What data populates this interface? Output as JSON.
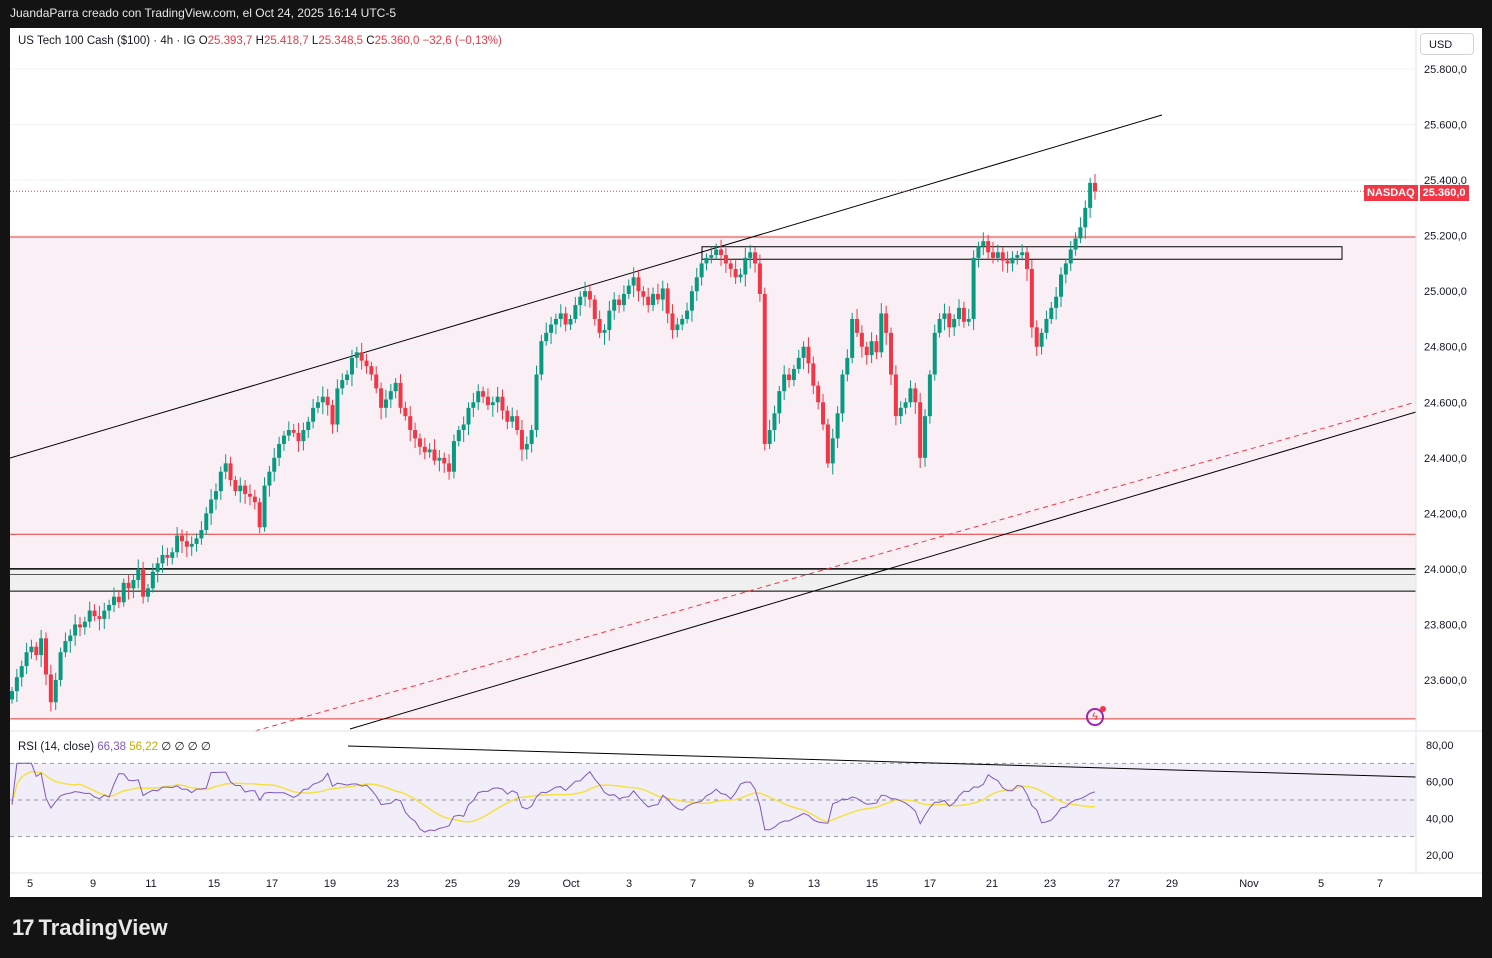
{
  "header": {
    "attribution": "JuandaParra creado con TradingView.com, el Oct 24, 2025 16:14 UTC-5"
  },
  "legend": {
    "symbol": "US Tech 100 Cash ($100) · 4h · IG",
    "open_label": "O",
    "open": "25.393,7",
    "high_label": "H",
    "high": "25.418,7",
    "low_label": "L",
    "low": "25.348,5",
    "close_label": "C",
    "close": "25.360,0",
    "change": "−32,6 (−0,13%)"
  },
  "currency_button": "USD",
  "price_tag": {
    "name": "NASDAQ",
    "value": "25.360,0"
  },
  "rsi_legend": {
    "label": "RSI (14, close)",
    "rsi": "66,38",
    "ma": "56,22",
    "extra": "∅ ∅ ∅ ∅"
  },
  "footer": {
    "logo": "TradingView"
  },
  "colors": {
    "bull": "#089981",
    "bear": "#f23645",
    "rsi": "#7e57c2",
    "rsi_ma": "#f5e142",
    "zone_fill": "#fbeff6"
  },
  "chart_data": [
    {
      "type": "candlestick",
      "title": "US Tech 100 Cash ($100) · 4h · IG",
      "y_axis": {
        "ticks": [
          "25.800,0",
          "25.600,0",
          "25.400,0",
          "25.200,0",
          "25.000,0",
          "24.800,0",
          "24.600,0",
          "24.400,0",
          "24.200,0",
          "24.000,0",
          "23.800,0",
          "23.600,0"
        ],
        "values": [
          25800,
          25600,
          25400,
          25200,
          25000,
          24800,
          24600,
          24400,
          24200,
          24000,
          23800,
          23600
        ],
        "ylim": [
          23450,
          25900
        ]
      },
      "x_axis": {
        "ticks": [
          "5",
          "9",
          "11",
          "15",
          "17",
          "19",
          "23",
          "25",
          "29",
          "Oct",
          "3",
          "7",
          "9",
          "13",
          "15",
          "17",
          "21",
          "23",
          "27",
          "29",
          "Nov",
          "5",
          "7"
        ]
      },
      "last_price": 25360.0,
      "horizontal_levels": [
        25195,
        24125,
        24000,
        23980,
        23920,
        23460
      ],
      "zone_box": [
        25115,
        25160
      ],
      "support_levels": [
        24000,
        23920
      ],
      "closes": [
        23560,
        23610,
        23650,
        23700,
        23720,
        23690,
        23750,
        23620,
        23520,
        23600,
        23700,
        23740,
        23760,
        23800,
        23790,
        23810,
        23850,
        23830,
        23820,
        23850,
        23870,
        23900,
        23880,
        23950,
        23930,
        23960,
        24000,
        23900,
        23930,
        23990,
        24020,
        24050,
        24040,
        24060,
        24120,
        24100,
        24080,
        24090,
        24110,
        24140,
        24200,
        24250,
        24280,
        24350,
        24380,
        24320,
        24280,
        24300,
        24270,
        24260,
        24240,
        24150,
        24300,
        24350,
        24400,
        24450,
        24480,
        24500,
        24490,
        24460,
        24500,
        24530,
        24580,
        24600,
        24620,
        24590,
        24520,
        24650,
        24680,
        24700,
        24760,
        24780,
        24750,
        24730,
        24700,
        24650,
        24580,
        24610,
        24640,
        24670,
        24580,
        24550,
        24500,
        24470,
        24440,
        24420,
        24430,
        24390,
        24400,
        24380,
        24350,
        24460,
        24500,
        24520,
        24580,
        24600,
        24640,
        24620,
        24590,
        24600,
        24620,
        24570,
        24530,
        24550,
        24500,
        24430,
        24450,
        24500,
        24700,
        24820,
        24850,
        24880,
        24900,
        24920,
        24880,
        24900,
        24950,
        24980,
        25000,
        24970,
        24900,
        24850,
        24860,
        24930,
        24970,
        24950,
        24990,
        25020,
        25050,
        25000,
        24980,
        24950,
        24990,
        24970,
        25010,
        24920,
        24860,
        24880,
        24900,
        24930,
        25000,
        25050,
        25100,
        25120,
        25130,
        25150,
        25130,
        25100,
        25080,
        25050,
        25060,
        25120,
        25140,
        25100,
        24990,
        24450,
        24500,
        24560,
        24640,
        24700,
        24680,
        24720,
        24760,
        24800,
        24740,
        24660,
        24600,
        24520,
        24380,
        24470,
        24560,
        24700,
        24760,
        24900,
        24850,
        24800,
        24770,
        24820,
        24780,
        24920,
        24850,
        24700,
        24550,
        24580,
        24600,
        24650,
        24600,
        24400,
        24550,
        24700,
        24850,
        24900,
        24920,
        24870,
        24900,
        24940,
        24890,
        24900,
        25120,
        25160,
        25180,
        25140,
        25120,
        25140,
        25110,
        25100,
        25120,
        25130,
        25140,
        25080,
        24870,
        24800,
        24850,
        24900,
        24940,
        24980,
        25060,
        25100,
        25150,
        25190,
        25230,
        25300,
        25390,
        25360
      ]
    },
    {
      "type": "line",
      "title": "RSI (14, close)",
      "y_axis": {
        "ticks": [
          "80,00",
          "60,00",
          "40,00",
          "20,00"
        ],
        "values": [
          80,
          60,
          40,
          20
        ],
        "ylim": [
          15,
          85
        ]
      },
      "bands": [
        70,
        50,
        30
      ],
      "series": [
        {
          "name": "RSI",
          "last": 66.38
        },
        {
          "name": "MA",
          "last": 56.22
        }
      ]
    }
  ]
}
